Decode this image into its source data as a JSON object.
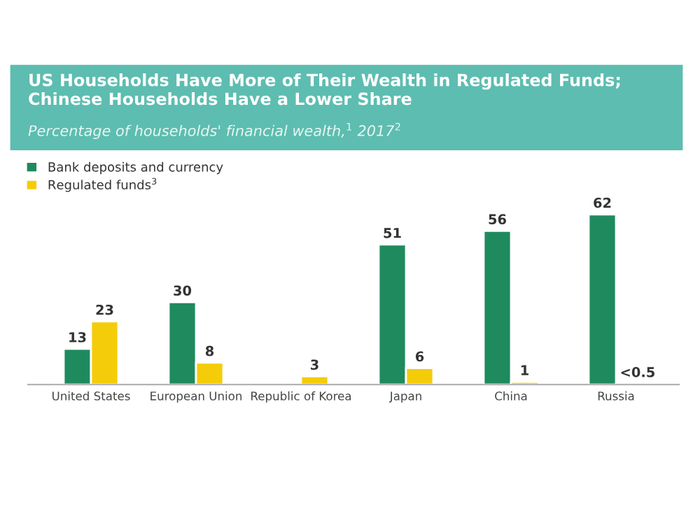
{
  "chart_data": {
    "type": "bar",
    "title": "US Households Have More of Their Wealth in Regulated Funds; Chinese Households Have a Lower Share",
    "subtitle": "Percentage of households' financial wealth,$^{1}$ 2017$^{2}$",
    "categories": [
      "United States",
      "European Union",
      "Republic of Korea",
      "Japan",
      "China",
      "Russia"
    ],
    "series": [
      {
        "name": "Bank deposits and currency",
        "color": "#1f8a5e",
        "values": [
          13,
          30,
          null,
          51,
          56,
          62
        ],
        "value_labels": [
          "13",
          "30",
          null,
          "51",
          "56",
          "62"
        ]
      },
      {
        "name": "Regulated funds$^{3}$",
        "color": "#f5cc0a",
        "values": [
          23,
          8,
          3,
          6,
          1,
          0.3
        ],
        "value_labels": [
          "23",
          "8",
          "3",
          "6",
          "1",
          "<0.5"
        ]
      }
    ],
    "legend": "top left",
    "grid": false
  }
}
